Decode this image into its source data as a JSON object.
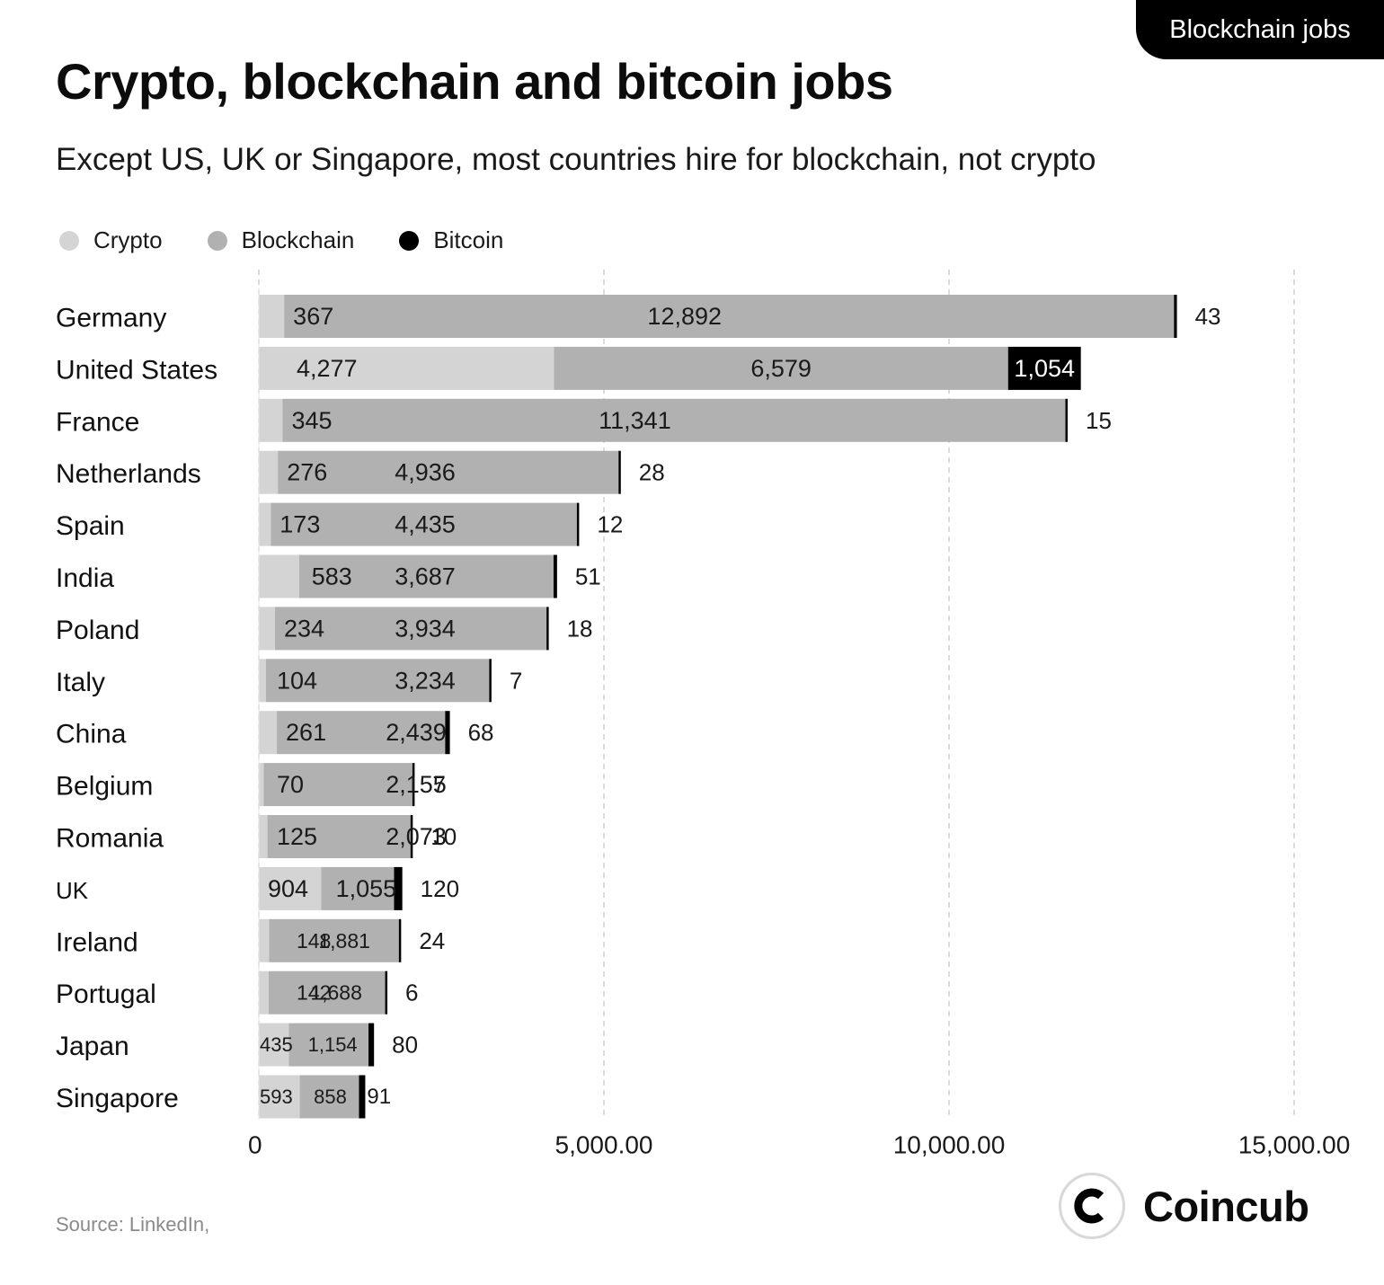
{
  "tag": {
    "label": "Blockchain jobs"
  },
  "chart_data": {
    "type": "bar",
    "orientation": "horizontal",
    "stacked": true,
    "title": "Crypto, blockchain and bitcoin jobs",
    "subtitle": "Except US, UK or Singapore, most countries hire for blockchain, not crypto",
    "legend_position": "top-left",
    "grid": "vertical dashed",
    "xlim": [
      0,
      15000
    ],
    "x_ticks": [
      0,
      5000,
      10000,
      15000
    ],
    "x_tick_labels": [
      "0",
      "5,000.00",
      "10,000.00",
      "15,000.00"
    ],
    "categories": [
      "Germany",
      "United States",
      "France",
      "Netherlands",
      "Spain",
      "India",
      "Poland",
      "Italy",
      "China",
      "Belgium",
      "Romania",
      "UK",
      "Ireland",
      "Portugal",
      "Japan",
      "Singapore"
    ],
    "series": [
      {
        "name": "Crypto",
        "color": "#d4d4d4",
        "values": [
          367,
          4277,
          345,
          276,
          173,
          583,
          234,
          104,
          261,
          70,
          125,
          904,
          148,
          142,
          435,
          593
        ],
        "labels": [
          "367",
          "4,277",
          "345",
          "276",
          "173",
          "583",
          "234",
          "104",
          "261",
          "70",
          "125",
          "904",
          "148",
          "142",
          "435",
          "593"
        ]
      },
      {
        "name": "Blockchain",
        "color": "#b1b1b1",
        "values": [
          12892,
          6579,
          11341,
          4936,
          4435,
          3687,
          3934,
          3234,
          2439,
          2155,
          2073,
          1055,
          1881,
          1688,
          1154,
          858
        ],
        "labels": [
          "12,892",
          "6,579",
          "11,341",
          "4,936",
          "4,435",
          "3,687",
          "3,934",
          "3,234",
          "2,439",
          "2,155",
          "2,073",
          "1,055",
          "1,881",
          "1,688",
          "1,154",
          "858"
        ]
      },
      {
        "name": "Bitcoin",
        "color": "#000000",
        "values": [
          43,
          1054,
          15,
          28,
          12,
          51,
          18,
          7,
          68,
          7,
          10,
          120,
          24,
          6,
          80,
          91
        ],
        "labels": [
          "43",
          "1,054",
          "15",
          "28",
          "12",
          "51",
          "18",
          "7",
          "68",
          "7",
          "10",
          "120",
          "24",
          "6",
          "80",
          "91"
        ]
      }
    ]
  },
  "footer": {
    "source": "Source: LinkedIn,",
    "brand": "Coincub",
    "brand_icon": "coincub-logo-icon"
  }
}
